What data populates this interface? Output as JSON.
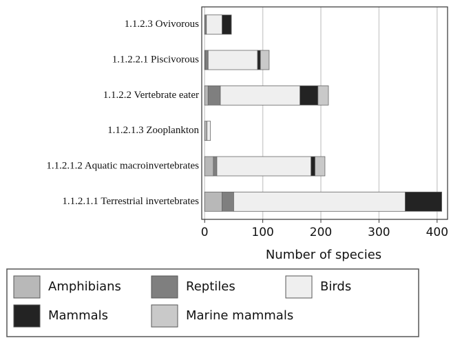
{
  "chart_data": {
    "type": "stacked-barh",
    "categories": [
      "1.1.2.3 Ovivorous",
      "1.1.2.2.1 Piscivorous",
      "1.1.2.2 Vertebrate eater",
      "1.1.2.1.3 Zooplankton",
      "1.1.2.1.2 Aquatic macroinvertebrates",
      "1.1.2.1.1 Terrestrial invertebrates"
    ],
    "series": [
      {
        "name": "Amphibians",
        "color": "#b8b8b8",
        "values": [
          0,
          1,
          6,
          4,
          15,
          30
        ]
      },
      {
        "name": "Reptiles",
        "color": "#7f7f7f",
        "values": [
          3,
          5,
          21,
          0,
          6,
          20
        ]
      },
      {
        "name": "Birds",
        "color": "#efefef",
        "values": [
          27,
          85,
          137,
          6,
          162,
          295
        ]
      },
      {
        "name": "Mammals",
        "color": "#232323",
        "values": [
          16,
          5,
          31,
          0,
          7,
          63
        ]
      },
      {
        "name": "Marine mammals",
        "color": "#c9c9c9",
        "values": [
          0,
          15,
          18,
          0,
          17,
          0
        ]
      }
    ],
    "xlabel": "Number of species",
    "xlim": [
      -5,
      418
    ],
    "xticks": [
      0,
      100,
      200,
      300,
      400
    ],
    "grid": true
  }
}
